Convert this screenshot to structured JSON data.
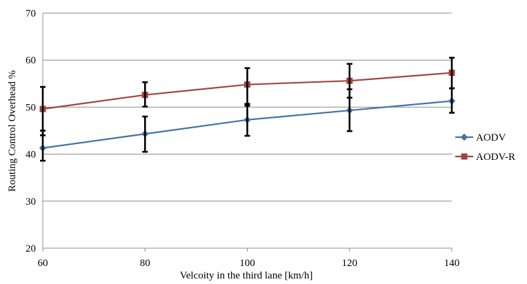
{
  "chart_data": {
    "type": "line",
    "title": "",
    "xlabel": "Velcoity in the third lane [km/h]",
    "ylabel": "Routing Control Overhead %",
    "x": [
      60,
      80,
      100,
      120,
      140
    ],
    "x_ticks": [
      "60",
      "80",
      "100",
      "120",
      "140"
    ],
    "ylim": [
      20,
      70
    ],
    "y_ticks": [
      "20",
      "30",
      "40",
      "50",
      "60",
      "70"
    ],
    "grid": "horizontal",
    "legend": "right",
    "series": [
      {
        "name": "AODV",
        "color": "#4472A4",
        "marker": "diamond",
        "values": [
          41.3,
          44.3,
          47.3,
          49.3,
          51.3
        ],
        "error_low": [
          38.6,
          40.5,
          43.9,
          44.9,
          48.8
        ],
        "error_high": [
          45.0,
          48.0,
          50.7,
          53.8,
          54.0
        ]
      },
      {
        "name": "AODV-R",
        "color": "#A34340",
        "marker": "square",
        "values": [
          49.6,
          52.6,
          54.8,
          55.6,
          57.3
        ],
        "error_low": [
          44.0,
          50.1,
          50.3,
          52.0,
          54.0
        ],
        "error_high": [
          54.3,
          55.3,
          58.3,
          59.2,
          60.5
        ]
      }
    ]
  }
}
